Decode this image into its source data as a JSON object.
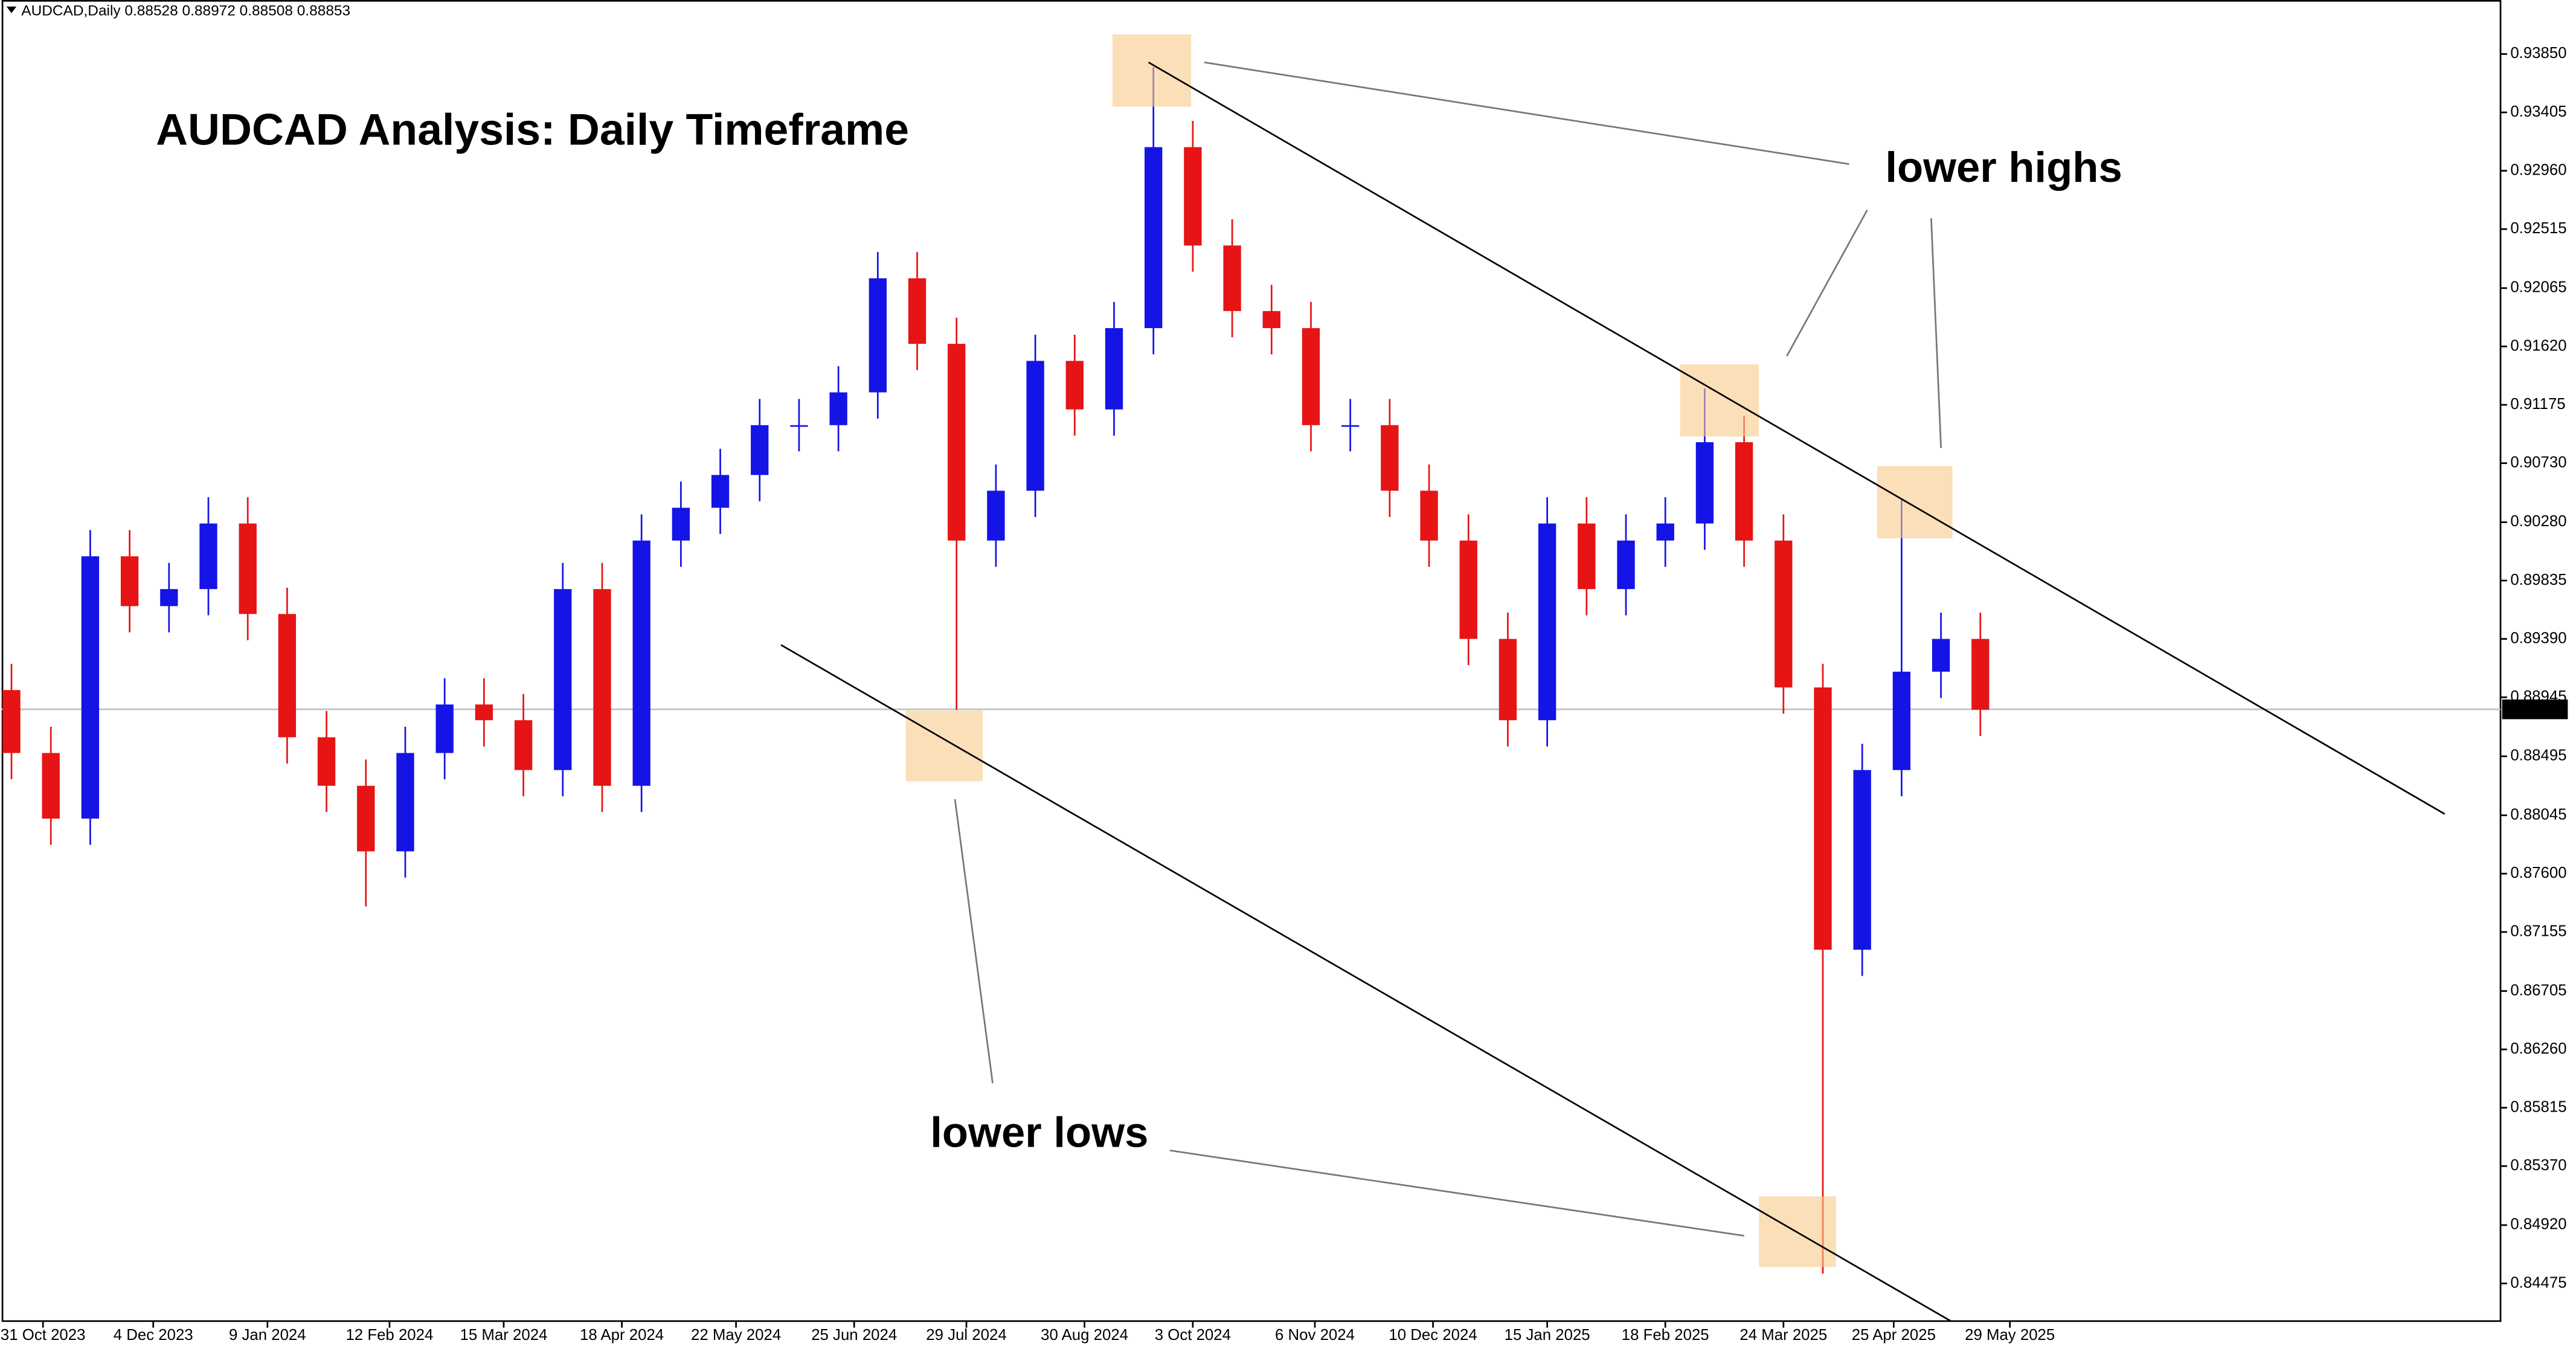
{
  "chart_data": {
    "type": "candlestick",
    "header": "AUDCAD,Daily  0.88528 0.88972 0.88508 0.88853",
    "title": "AUDCAD Analysis: Daily Timeframe",
    "annotations": [
      "lower highs",
      "lower lows"
    ],
    "up_color": "#1414e6",
    "down_color": "#e61414",
    "open": [
      0.89,
      0.8852,
      0.8802,
      0.9002,
      0.8964,
      0.8977,
      0.9027,
      0.8958,
      0.8864,
      0.8827,
      0.8777,
      0.8852,
      0.8889,
      0.8877,
      0.8839,
      0.8977,
      0.8827,
      0.9014,
      0.9039,
      0.9064,
      0.9102,
      0.9102,
      0.9127,
      0.9214,
      0.9164,
      0.9014,
      0.9052,
      0.9151,
      0.9114,
      0.9176,
      0.9314,
      0.9239,
      0.9189,
      0.9176,
      0.9102,
      0.9102,
      0.9052,
      0.9014,
      0.8939,
      0.8877,
      0.9027,
      0.8977,
      0.9014,
      0.9027,
      0.9089,
      0.9014,
      0.8902,
      0.8702,
      0.8839,
      0.8914,
      0.8939
    ],
    "high": [
      0.892,
      0.8872,
      0.9022,
      0.9022,
      0.8997,
      0.9047,
      0.9047,
      0.8978,
      0.8884,
      0.8847,
      0.8872,
      0.8909,
      0.8909,
      0.8897,
      0.8997,
      0.8997,
      0.9034,
      0.9059,
      0.9084,
      0.9122,
      0.9122,
      0.9147,
      0.9234,
      0.9234,
      0.9184,
      0.9072,
      0.9171,
      0.9171,
      0.9196,
      0.9375,
      0.9334,
      0.9259,
      0.9209,
      0.9196,
      0.9122,
      0.9122,
      0.9072,
      0.9034,
      0.8959,
      0.9047,
      0.9047,
      0.9034,
      0.9047,
      0.913,
      0.9109,
      0.9034,
      0.892,
      0.8859,
      0.9045,
      0.8959,
      0.8959
    ],
    "low": [
      0.8832,
      0.8782,
      0.8782,
      0.8944,
      0.8944,
      0.8957,
      0.8938,
      0.8844,
      0.8807,
      0.8735,
      0.8757,
      0.8832,
      0.8857,
      0.8819,
      0.8819,
      0.8807,
      0.8807,
      0.8994,
      0.9019,
      0.9044,
      0.9082,
      0.9082,
      0.9107,
      0.9144,
      0.8885,
      0.8994,
      0.9032,
      0.9094,
      0.9094,
      0.9156,
      0.9219,
      0.9169,
      0.9156,
      0.9082,
      0.9082,
      0.9032,
      0.8994,
      0.8919,
      0.8857,
      0.8857,
      0.8957,
      0.8957,
      0.8994,
      0.9007,
      0.8994,
      0.8882,
      0.8455,
      0.8682,
      0.8819,
      0.8894,
      0.8865
    ],
    "close": [
      0.8852,
      0.8802,
      0.9002,
      0.8964,
      0.8977,
      0.9027,
      0.8958,
      0.8864,
      0.8827,
      0.8777,
      0.8852,
      0.8889,
      0.8877,
      0.8839,
      0.8977,
      0.8827,
      0.9014,
      0.9039,
      0.9064,
      0.9102,
      0.9102,
      0.9127,
      0.9214,
      0.9164,
      0.9014,
      0.9052,
      0.9151,
      0.9114,
      0.9176,
      0.9314,
      0.9239,
      0.9189,
      0.9176,
      0.9102,
      0.9102,
      0.9052,
      0.9014,
      0.8939,
      0.8877,
      0.9027,
      0.8977,
      0.9014,
      0.9027,
      0.9089,
      0.9014,
      0.8902,
      0.8702,
      0.8839,
      0.8914,
      0.8939,
      0.8885
    ],
    "current_price": 0.88853,
    "xlim": [
      -0.25,
      63.21
    ],
    "xticks": [
      {
        "value": 0.8,
        "label": "31 Oct 2023"
      },
      {
        "value": 3.6,
        "label": "4 Dec 2023"
      },
      {
        "value": 6.5,
        "label": "9 Jan 2024"
      },
      {
        "value": 9.6,
        "label": "12 Feb 2024"
      },
      {
        "value": 12.5,
        "label": "15 Mar 2024"
      },
      {
        "value": 15.5,
        "label": "18 Apr 2024"
      },
      {
        "value": 18.4,
        "label": "22 May 2024"
      },
      {
        "value": 21.4,
        "label": "25 Jun 2024"
      },
      {
        "value": 24.25,
        "label": "29 Jul 2024"
      },
      {
        "value": 27.25,
        "label": "30 Aug 2024"
      },
      {
        "value": 30,
        "label": "3 Oct 2024"
      },
      {
        "value": 33.1,
        "label": "6 Nov 2024"
      },
      {
        "value": 36.1,
        "label": "10 Dec 2024"
      },
      {
        "value": 39,
        "label": "15 Jan 2025"
      },
      {
        "value": 42,
        "label": "18 Feb 2025"
      },
      {
        "value": 45,
        "label": "24 Mar 2025"
      },
      {
        "value": 47.8,
        "label": "25 Apr 2025"
      },
      {
        "value": 50.75,
        "label": "29 May 2025"
      }
    ],
    "ylim": [
      0.84188,
      0.94262
    ],
    "yticks": [
      {
        "value": 0.9385,
        "label": "0.93850"
      },
      0.93405,
      {
        "value": 0.9296,
        "label": "0.92960"
      },
      0.92515,
      0.92065,
      {
        "value": 0.9162,
        "label": "0.91620"
      },
      0.91175,
      {
        "value": 0.9073,
        "label": "0.90730"
      },
      {
        "value": 0.9028,
        "label": "0.90280"
      },
      0.89835,
      {
        "value": 0.8939,
        "label": "0.89390"
      },
      0.88945,
      0.88495,
      0.88045,
      {
        "value": 0.876,
        "label": "0.87600"
      },
      0.87155,
      0.86705,
      {
        "value": 0.8626,
        "label": "0.86260"
      },
      0.85815,
      {
        "value": 0.8537,
        "label": "0.85370"
      },
      {
        "value": 0.8492,
        "label": "0.84920"
      },
      0.84475
    ]
  }
}
